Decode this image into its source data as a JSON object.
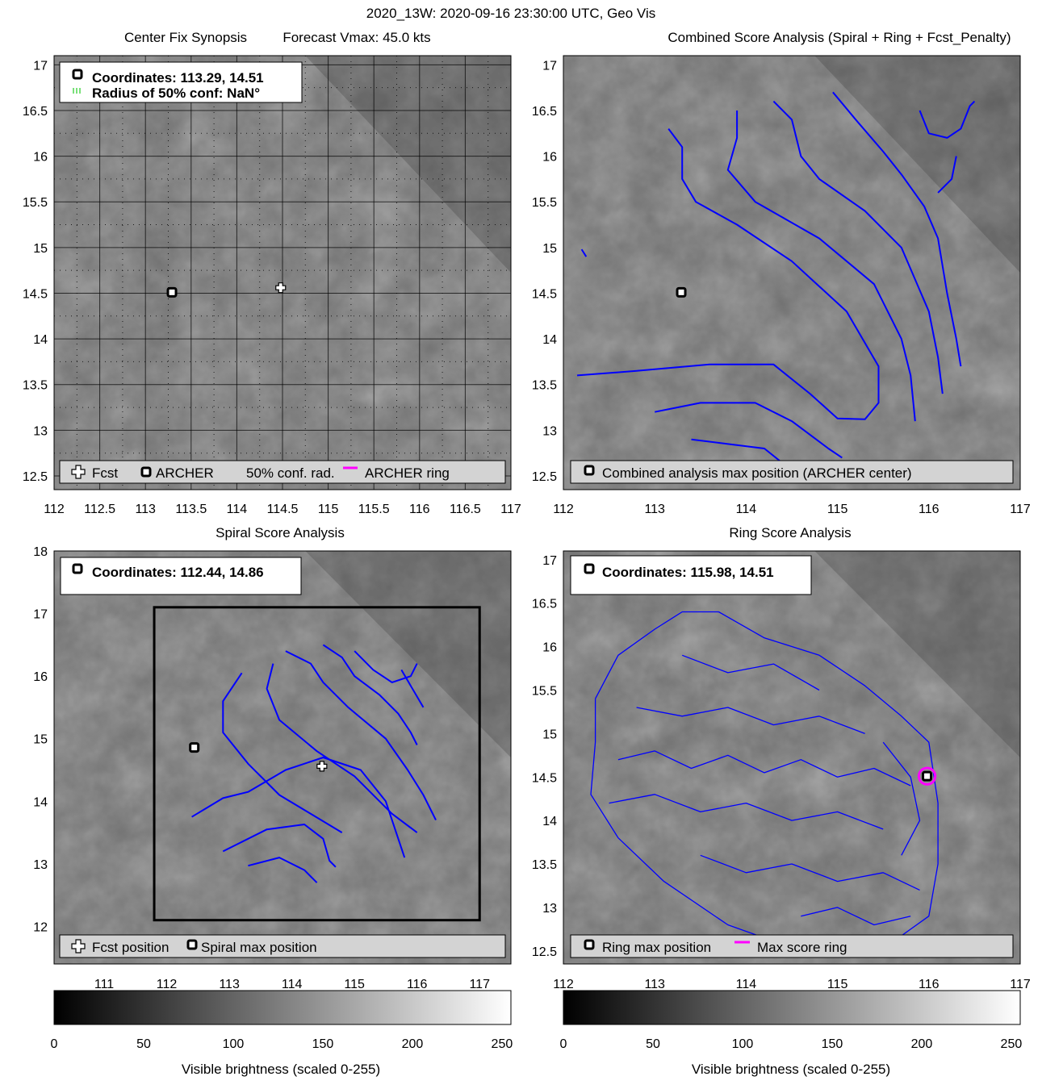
{
  "suptitle": "2020_13W: 2020-09-16 23:30:00 UTC, Geo Vis",
  "colors": {
    "contour": "#0000ff",
    "ring": "#ff00ff",
    "grid": "#000000",
    "fcst_marker": "#ffffff"
  },
  "panels": {
    "synopsis": {
      "title_left": "Center Fix Synopsis",
      "title_right": "Forecast Vmax: 45.0 kts",
      "info_line1": "Coordinates: 113.29, 14.51",
      "info_line2": "Radius of 50% conf: NaN°",
      "legend": {
        "fcst": "Fcst",
        "archer": "ARCHER",
        "conf": "50% conf. rad.",
        "ring": "ARCHER ring"
      }
    },
    "combined": {
      "title": "Combined Score Analysis (Spiral + Ring + Fcst_Penalty)",
      "legend": {
        "max": "Combined analysis max position (ARCHER center)"
      }
    },
    "spiral": {
      "title": "Spiral Score Analysis",
      "info_line1": "Coordinates: 112.44, 14.86",
      "legend": {
        "fcst": "Fcst position",
        "max": "Spiral max position"
      }
    },
    "ring": {
      "title": "Ring Score Analysis",
      "info_line1": "Coordinates: 115.98, 14.51",
      "legend": {
        "max": "Ring max position",
        "ring": "Max score ring"
      }
    },
    "colorbar_left": {
      "label": "Visible brightness (scaled 0-255)"
    },
    "colorbar_right": {
      "label": "Visible brightness (scaled 0-255)"
    }
  },
  "chart_data": [
    {
      "type": "scatter",
      "name_ref": "synopsis",
      "xlim": [
        112,
        117
      ],
      "ylim": [
        12.35,
        17.1
      ],
      "xticks": [
        "112",
        "112.5",
        "113",
        "113.5",
        "114",
        "114.5",
        "115",
        "115.5",
        "116",
        "116.5",
        "117"
      ],
      "yticks": [
        "12.5",
        "13",
        "13.5",
        "14",
        "14.5",
        "15",
        "15.5",
        "16",
        "16.5",
        "17"
      ],
      "grid": true,
      "points": [
        {
          "label": "ARCHER",
          "marker": "square",
          "x": 113.29,
          "y": 14.51
        },
        {
          "label": "Fcst",
          "marker": "cross",
          "x": 114.48,
          "y": 14.56
        }
      ],
      "legend_placement": "bottom"
    },
    {
      "type": "scatter",
      "name_ref": "combined",
      "xlim": [
        112,
        117
      ],
      "ylim": [
        12.35,
        17.1
      ],
      "xticks": [
        "112",
        "113",
        "114",
        "115",
        "116",
        "117"
      ],
      "yticks": [
        "12.5",
        "13",
        "13.5",
        "14",
        "14.5",
        "15",
        "15.5",
        "16",
        "16.5",
        "17"
      ],
      "grid": false,
      "points": [
        {
          "label": "Combined analysis max position",
          "marker": "square",
          "x": 113.29,
          "y": 14.51
        }
      ],
      "contours": [
        [
          [
            112.15,
            13.6
          ],
          [
            112.8,
            13.65
          ],
          [
            113.6,
            13.72
          ],
          [
            114.3,
            13.72
          ],
          [
            114.7,
            13.4
          ],
          [
            115.0,
            13.13
          ],
          [
            115.3,
            13.12
          ],
          [
            115.45,
            13.3
          ],
          [
            115.45,
            13.7
          ],
          [
            115.1,
            14.3
          ],
          [
            114.5,
            14.85
          ],
          [
            113.9,
            15.25
          ],
          [
            113.45,
            15.5
          ],
          [
            113.3,
            15.75
          ],
          [
            113.3,
            16.1
          ],
          [
            113.15,
            16.3
          ]
        ],
        [
          [
            113.0,
            13.2
          ],
          [
            113.5,
            13.3
          ],
          [
            114.1,
            13.3
          ],
          [
            114.5,
            13.1
          ],
          [
            114.9,
            12.8
          ],
          [
            115.05,
            12.7
          ]
        ],
        [
          [
            113.4,
            12.9
          ],
          [
            113.8,
            12.85
          ],
          [
            114.2,
            12.8
          ],
          [
            114.45,
            12.6
          ]
        ],
        [
          [
            113.9,
            16.5
          ],
          [
            113.9,
            16.2
          ],
          [
            113.8,
            15.85
          ],
          [
            114.1,
            15.5
          ],
          [
            114.8,
            15.1
          ],
          [
            115.4,
            14.6
          ],
          [
            115.7,
            14.0
          ],
          [
            115.8,
            13.6
          ],
          [
            115.85,
            13.1
          ]
        ],
        [
          [
            114.3,
            16.6
          ],
          [
            114.5,
            16.4
          ],
          [
            114.6,
            16.0
          ],
          [
            114.8,
            15.75
          ],
          [
            115.3,
            15.4
          ],
          [
            115.7,
            15.0
          ],
          [
            116.0,
            14.3
          ],
          [
            116.1,
            13.8
          ],
          [
            116.15,
            13.4
          ]
        ],
        [
          [
            114.95,
            16.7
          ],
          [
            115.2,
            16.4
          ],
          [
            115.5,
            16.05
          ],
          [
            115.7,
            15.8
          ],
          [
            115.95,
            15.45
          ],
          [
            116.1,
            15.1
          ],
          [
            116.2,
            14.5
          ],
          [
            116.3,
            14.0
          ],
          [
            116.35,
            13.7
          ]
        ],
        [
          [
            115.9,
            16.5
          ],
          [
            116.0,
            16.25
          ],
          [
            116.2,
            16.2
          ],
          [
            116.35,
            16.3
          ],
          [
            116.45,
            16.55
          ],
          [
            116.5,
            16.6
          ]
        ],
        [
          [
            116.3,
            16.0
          ],
          [
            116.25,
            15.75
          ],
          [
            116.1,
            15.6
          ]
        ],
        [
          [
            112.2,
            14.98
          ],
          [
            112.25,
            14.9
          ]
        ]
      ],
      "legend_placement": "bottom"
    },
    {
      "type": "scatter",
      "name_ref": "spiral",
      "xlim": [
        110.2,
        117.5
      ],
      "ylim": [
        11.4,
        18.0
      ],
      "xticks": [
        "111",
        "112",
        "113",
        "114",
        "115",
        "116",
        "117"
      ],
      "yticks": [
        "12",
        "13",
        "14",
        "15",
        "16",
        "17",
        "18"
      ],
      "grid": false,
      "points": [
        {
          "label": "Spiral max position",
          "marker": "square",
          "x": 112.44,
          "y": 14.86
        },
        {
          "label": "Fcst position",
          "marker": "cross",
          "x": 114.48,
          "y": 14.56
        }
      ],
      "box": {
        "x": [
          111.8,
          117.0
        ],
        "y": [
          12.1,
          17.1
        ]
      },
      "contours": [
        [
          [
            112.4,
            13.75
          ],
          [
            112.9,
            14.05
          ],
          [
            113.3,
            14.15
          ],
          [
            113.9,
            14.5
          ],
          [
            114.5,
            14.7
          ],
          [
            115.1,
            14.5
          ],
          [
            115.5,
            14.0
          ],
          [
            115.8,
            13.1
          ]
        ],
        [
          [
            112.9,
            13.2
          ],
          [
            113.6,
            13.55
          ],
          [
            114.2,
            13.63
          ],
          [
            114.5,
            13.4
          ],
          [
            114.6,
            13.05
          ],
          [
            114.7,
            12.95
          ]
        ],
        [
          [
            113.3,
            12.97
          ],
          [
            113.8,
            13.1
          ],
          [
            114.2,
            12.9
          ],
          [
            114.4,
            12.7
          ]
        ],
        [
          [
            113.2,
            16.05
          ],
          [
            112.9,
            15.6
          ],
          [
            112.9,
            15.1
          ],
          [
            113.3,
            14.6
          ],
          [
            113.8,
            14.1
          ],
          [
            114.8,
            13.5
          ]
        ],
        [
          [
            113.7,
            16.2
          ],
          [
            113.6,
            15.8
          ],
          [
            113.8,
            15.3
          ],
          [
            114.4,
            14.8
          ],
          [
            115.0,
            14.4
          ],
          [
            115.6,
            13.8
          ],
          [
            116.0,
            13.5
          ]
        ],
        [
          [
            113.9,
            16.4
          ],
          [
            114.3,
            16.2
          ],
          [
            114.5,
            15.9
          ],
          [
            114.9,
            15.5
          ],
          [
            115.5,
            15.0
          ],
          [
            115.85,
            14.5
          ],
          [
            116.1,
            14.1
          ],
          [
            116.3,
            13.7
          ]
        ],
        [
          [
            114.5,
            16.5
          ],
          [
            114.8,
            16.3
          ],
          [
            115.0,
            16.0
          ],
          [
            115.4,
            15.7
          ],
          [
            115.7,
            15.4
          ],
          [
            115.9,
            15.1
          ],
          [
            116.0,
            14.9
          ]
        ],
        [
          [
            115.0,
            16.4
          ],
          [
            115.3,
            16.1
          ],
          [
            115.6,
            15.9
          ],
          [
            115.9,
            16.0
          ],
          [
            116.0,
            16.2
          ]
        ],
        [
          [
            116.1,
            15.5
          ],
          [
            115.75,
            16.1
          ]
        ]
      ],
      "legend_placement": "bottom"
    },
    {
      "type": "scatter",
      "name_ref": "ring",
      "xlim": [
        112,
        117
      ],
      "ylim": [
        12.35,
        17.1
      ],
      "xticks": [
        "112",
        "113",
        "114",
        "115",
        "116",
        "117"
      ],
      "yticks": [
        "12.5",
        "13",
        "13.5",
        "14",
        "14.5",
        "15",
        "15.5",
        "16",
        "16.5",
        "17"
      ],
      "grid": false,
      "points": [
        {
          "label": "Ring max position",
          "marker": "square",
          "x": 115.98,
          "y": 14.51
        }
      ],
      "contours": [
        [
          [
            112.35,
            15.4
          ],
          [
            112.6,
            15.9
          ],
          [
            113.0,
            16.2
          ],
          [
            113.3,
            16.4
          ],
          [
            113.7,
            16.4
          ],
          [
            114.2,
            16.1
          ],
          [
            114.8,
            15.9
          ],
          [
            115.3,
            15.55
          ],
          [
            115.7,
            15.2
          ],
          [
            116.0,
            14.9
          ],
          [
            116.1,
            14.2
          ],
          [
            116.1,
            13.5
          ],
          [
            116.0,
            12.9
          ],
          [
            115.6,
            12.6
          ],
          [
            115.1,
            12.5
          ],
          [
            114.6,
            12.5
          ],
          [
            113.8,
            12.8
          ],
          [
            113.1,
            13.3
          ],
          [
            112.6,
            13.8
          ],
          [
            112.3,
            14.3
          ],
          [
            112.35,
            14.9
          ],
          [
            112.35,
            15.4
          ]
        ],
        [
          [
            112.6,
            14.7
          ],
          [
            113.0,
            14.8
          ],
          [
            113.4,
            14.6
          ],
          [
            113.8,
            14.75
          ],
          [
            114.2,
            14.55
          ],
          [
            114.6,
            14.7
          ],
          [
            115.0,
            14.5
          ],
          [
            115.4,
            14.6
          ],
          [
            115.8,
            14.4
          ]
        ],
        [
          [
            112.5,
            14.2
          ],
          [
            113.0,
            14.3
          ],
          [
            113.5,
            14.1
          ],
          [
            114.0,
            14.2
          ],
          [
            114.5,
            14.0
          ],
          [
            115.0,
            14.1
          ],
          [
            115.5,
            13.9
          ]
        ],
        [
          [
            112.8,
            15.3
          ],
          [
            113.3,
            15.2
          ],
          [
            113.8,
            15.3
          ],
          [
            114.3,
            15.1
          ],
          [
            114.8,
            15.2
          ],
          [
            115.3,
            15.0
          ]
        ],
        [
          [
            113.3,
            15.9
          ],
          [
            113.8,
            15.7
          ],
          [
            114.3,
            15.8
          ],
          [
            114.8,
            15.5
          ]
        ],
        [
          [
            113.5,
            13.6
          ],
          [
            114.0,
            13.4
          ],
          [
            114.5,
            13.5
          ],
          [
            115.0,
            13.3
          ],
          [
            115.5,
            13.4
          ],
          [
            115.9,
            13.2
          ]
        ],
        [
          [
            114.6,
            12.9
          ],
          [
            115.0,
            13.0
          ],
          [
            115.4,
            12.8
          ],
          [
            115.8,
            12.9
          ]
        ],
        [
          [
            115.5,
            14.9
          ],
          [
            115.8,
            14.5
          ],
          [
            115.9,
            14.0
          ],
          [
            115.7,
            13.6
          ]
        ]
      ],
      "ring_circle": {
        "x": 115.98,
        "y": 14.51,
        "radius_deg": 0.09
      },
      "legend_placement": "bottom"
    },
    {
      "type": "heatmap",
      "name_ref": "colorbar_left",
      "range": [
        0,
        255
      ],
      "ticks": [
        "0",
        "50",
        "100",
        "150",
        "200",
        "250"
      ]
    },
    {
      "type": "heatmap",
      "name_ref": "colorbar_right",
      "range": [
        0,
        255
      ],
      "ticks": [
        "0",
        "50",
        "100",
        "150",
        "200",
        "250"
      ]
    }
  ]
}
